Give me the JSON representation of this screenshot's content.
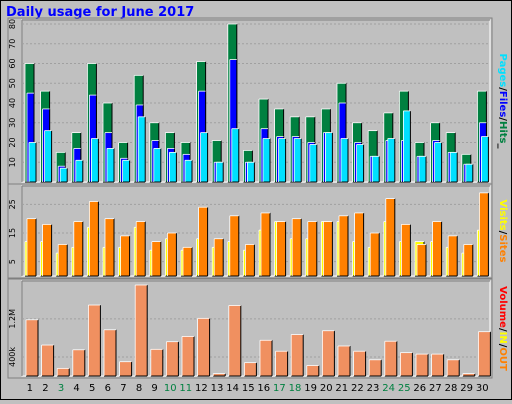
{
  "chart_data": [
    {
      "type": "bar",
      "title": "Daily usage for June 2017",
      "ylabel": "Pages / Files / Hits",
      "ylabel_parts": [
        "Pages",
        "/",
        "Files",
        "/",
        "Hits",
        "_"
      ],
      "ylim": [
        0,
        80
      ],
      "yticks": [
        10,
        20,
        30,
        40,
        50,
        60,
        70,
        80
      ],
      "categories": [
        "1",
        "2",
        "3",
        "4",
        "5",
        "6",
        "7",
        "8",
        "9",
        "10",
        "11",
        "12",
        "13",
        "14",
        "15",
        "16",
        "17",
        "18",
        "19",
        "20",
        "21",
        "22",
        "23",
        "24",
        "25",
        "26",
        "27",
        "28",
        "29",
        "30"
      ],
      "series": [
        {
          "name": "Hits",
          "values": [
            60,
            46,
            15,
            25,
            60,
            40,
            20,
            54,
            30,
            25,
            20,
            61,
            21,
            80,
            16,
            42,
            37,
            33,
            33,
            37,
            50,
            30,
            26,
            35,
            46,
            20,
            30,
            25,
            14,
            46
          ]
        },
        {
          "name": "Files",
          "values": [
            45,
            37,
            8,
            17,
            44,
            25,
            12,
            39,
            21,
            17,
            14,
            46,
            10,
            62,
            10,
            27,
            23,
            23,
            20,
            25,
            40,
            20,
            13,
            21,
            21,
            13,
            21,
            15,
            9,
            30
          ]
        },
        {
          "name": "Pages",
          "values": [
            20,
            26,
            7,
            11,
            22,
            17,
            11,
            33,
            17,
            15,
            11,
            25,
            10,
            27,
            10,
            22,
            22,
            22,
            19,
            25,
            22,
            19,
            13,
            22,
            36,
            13,
            20,
            15,
            9,
            23
          ]
        }
      ],
      "colors": {
        "Hits": "#008040",
        "Files": "#0000ff",
        "Pages": "#00e0ff"
      }
    },
    {
      "type": "bar",
      "ylabel": "Visits / Sites",
      "ylabel_parts": [
        "Visits",
        "/",
        "Sites"
      ],
      "yticks": [
        5,
        15,
        25
      ],
      "ylim": [
        0,
        30
      ],
      "categories": [
        "1",
        "2",
        "3",
        "4",
        "5",
        "6",
        "7",
        "8",
        "9",
        "10",
        "11",
        "12",
        "13",
        "14",
        "15",
        "16",
        "17",
        "18",
        "19",
        "20",
        "21",
        "22",
        "23",
        "24",
        "25",
        "26",
        "27",
        "28",
        "29",
        "30"
      ],
      "series": [
        {
          "name": "Sites",
          "values": [
            12,
            12,
            8,
            10,
            17,
            10,
            10,
            17,
            9,
            13,
            9,
            13,
            10,
            12,
            9,
            16,
            19,
            13,
            13,
            19,
            19,
            12,
            10,
            19,
            12,
            12,
            12,
            10,
            8,
            16
          ]
        },
        {
          "name": "Visits",
          "values": [
            20,
            18,
            11,
            19,
            26,
            20,
            14,
            19,
            12,
            15,
            10,
            24,
            13,
            21,
            11,
            22,
            19,
            20,
            19,
            19,
            21,
            22,
            15,
            27,
            18,
            11,
            19,
            14,
            11,
            29
          ]
        }
      ],
      "colors": {
        "Sites": "#ffff00",
        "Visits": "#ff8000"
      }
    },
    {
      "type": "bar",
      "ylabel": "Volume / IN / OUT",
      "ylabel_parts": [
        "Volume",
        "/",
        "IN",
        "/",
        "OUT"
      ],
      "yticks_labels": [
        "400k",
        "1.2M"
      ],
      "yticks": [
        400000,
        1200000
      ],
      "ylim": [
        0,
        1910000
      ],
      "categories": [
        "1",
        "2",
        "3",
        "4",
        "5",
        "6",
        "7",
        "8",
        "9",
        "10",
        "11",
        "12",
        "13",
        "14",
        "15",
        "16",
        "17",
        "18",
        "19",
        "20",
        "21",
        "22",
        "23",
        "24",
        "25",
        "26",
        "27",
        "28",
        "29",
        "30"
      ],
      "series": [
        {
          "name": "Volume",
          "values": [
            1180000,
            650000,
            160000,
            550000,
            1490000,
            970000,
            300000,
            1910000,
            560000,
            720000,
            830000,
            1210000,
            50000,
            1480000,
            280000,
            750000,
            520000,
            870000,
            220000,
            950000,
            630000,
            520000,
            340000,
            730000,
            490000,
            460000,
            460000,
            340000,
            50000,
            930000
          ]
        }
      ],
      "colors": {
        "Volume": "#ff0000"
      }
    }
  ],
  "weekend_days": [
    3,
    10,
    11,
    17,
    18,
    24,
    25
  ],
  "colors": {
    "background": "#c0c0c0",
    "plot_bg": "#c0c0c0",
    "title": "#0000ff",
    "axis_text": "#000000",
    "weekend_text": "#008040",
    "volume_bar": "#f09060",
    "volume_label": "#ff0000",
    "in_label": "#ffff00",
    "out_label": "#ff8000",
    "sites_label": "#ff8000",
    "visits_label": "#ffff00",
    "pages_label": "#00e0ff",
    "files_label": "#0000ff",
    "hits_label": "#008040"
  }
}
